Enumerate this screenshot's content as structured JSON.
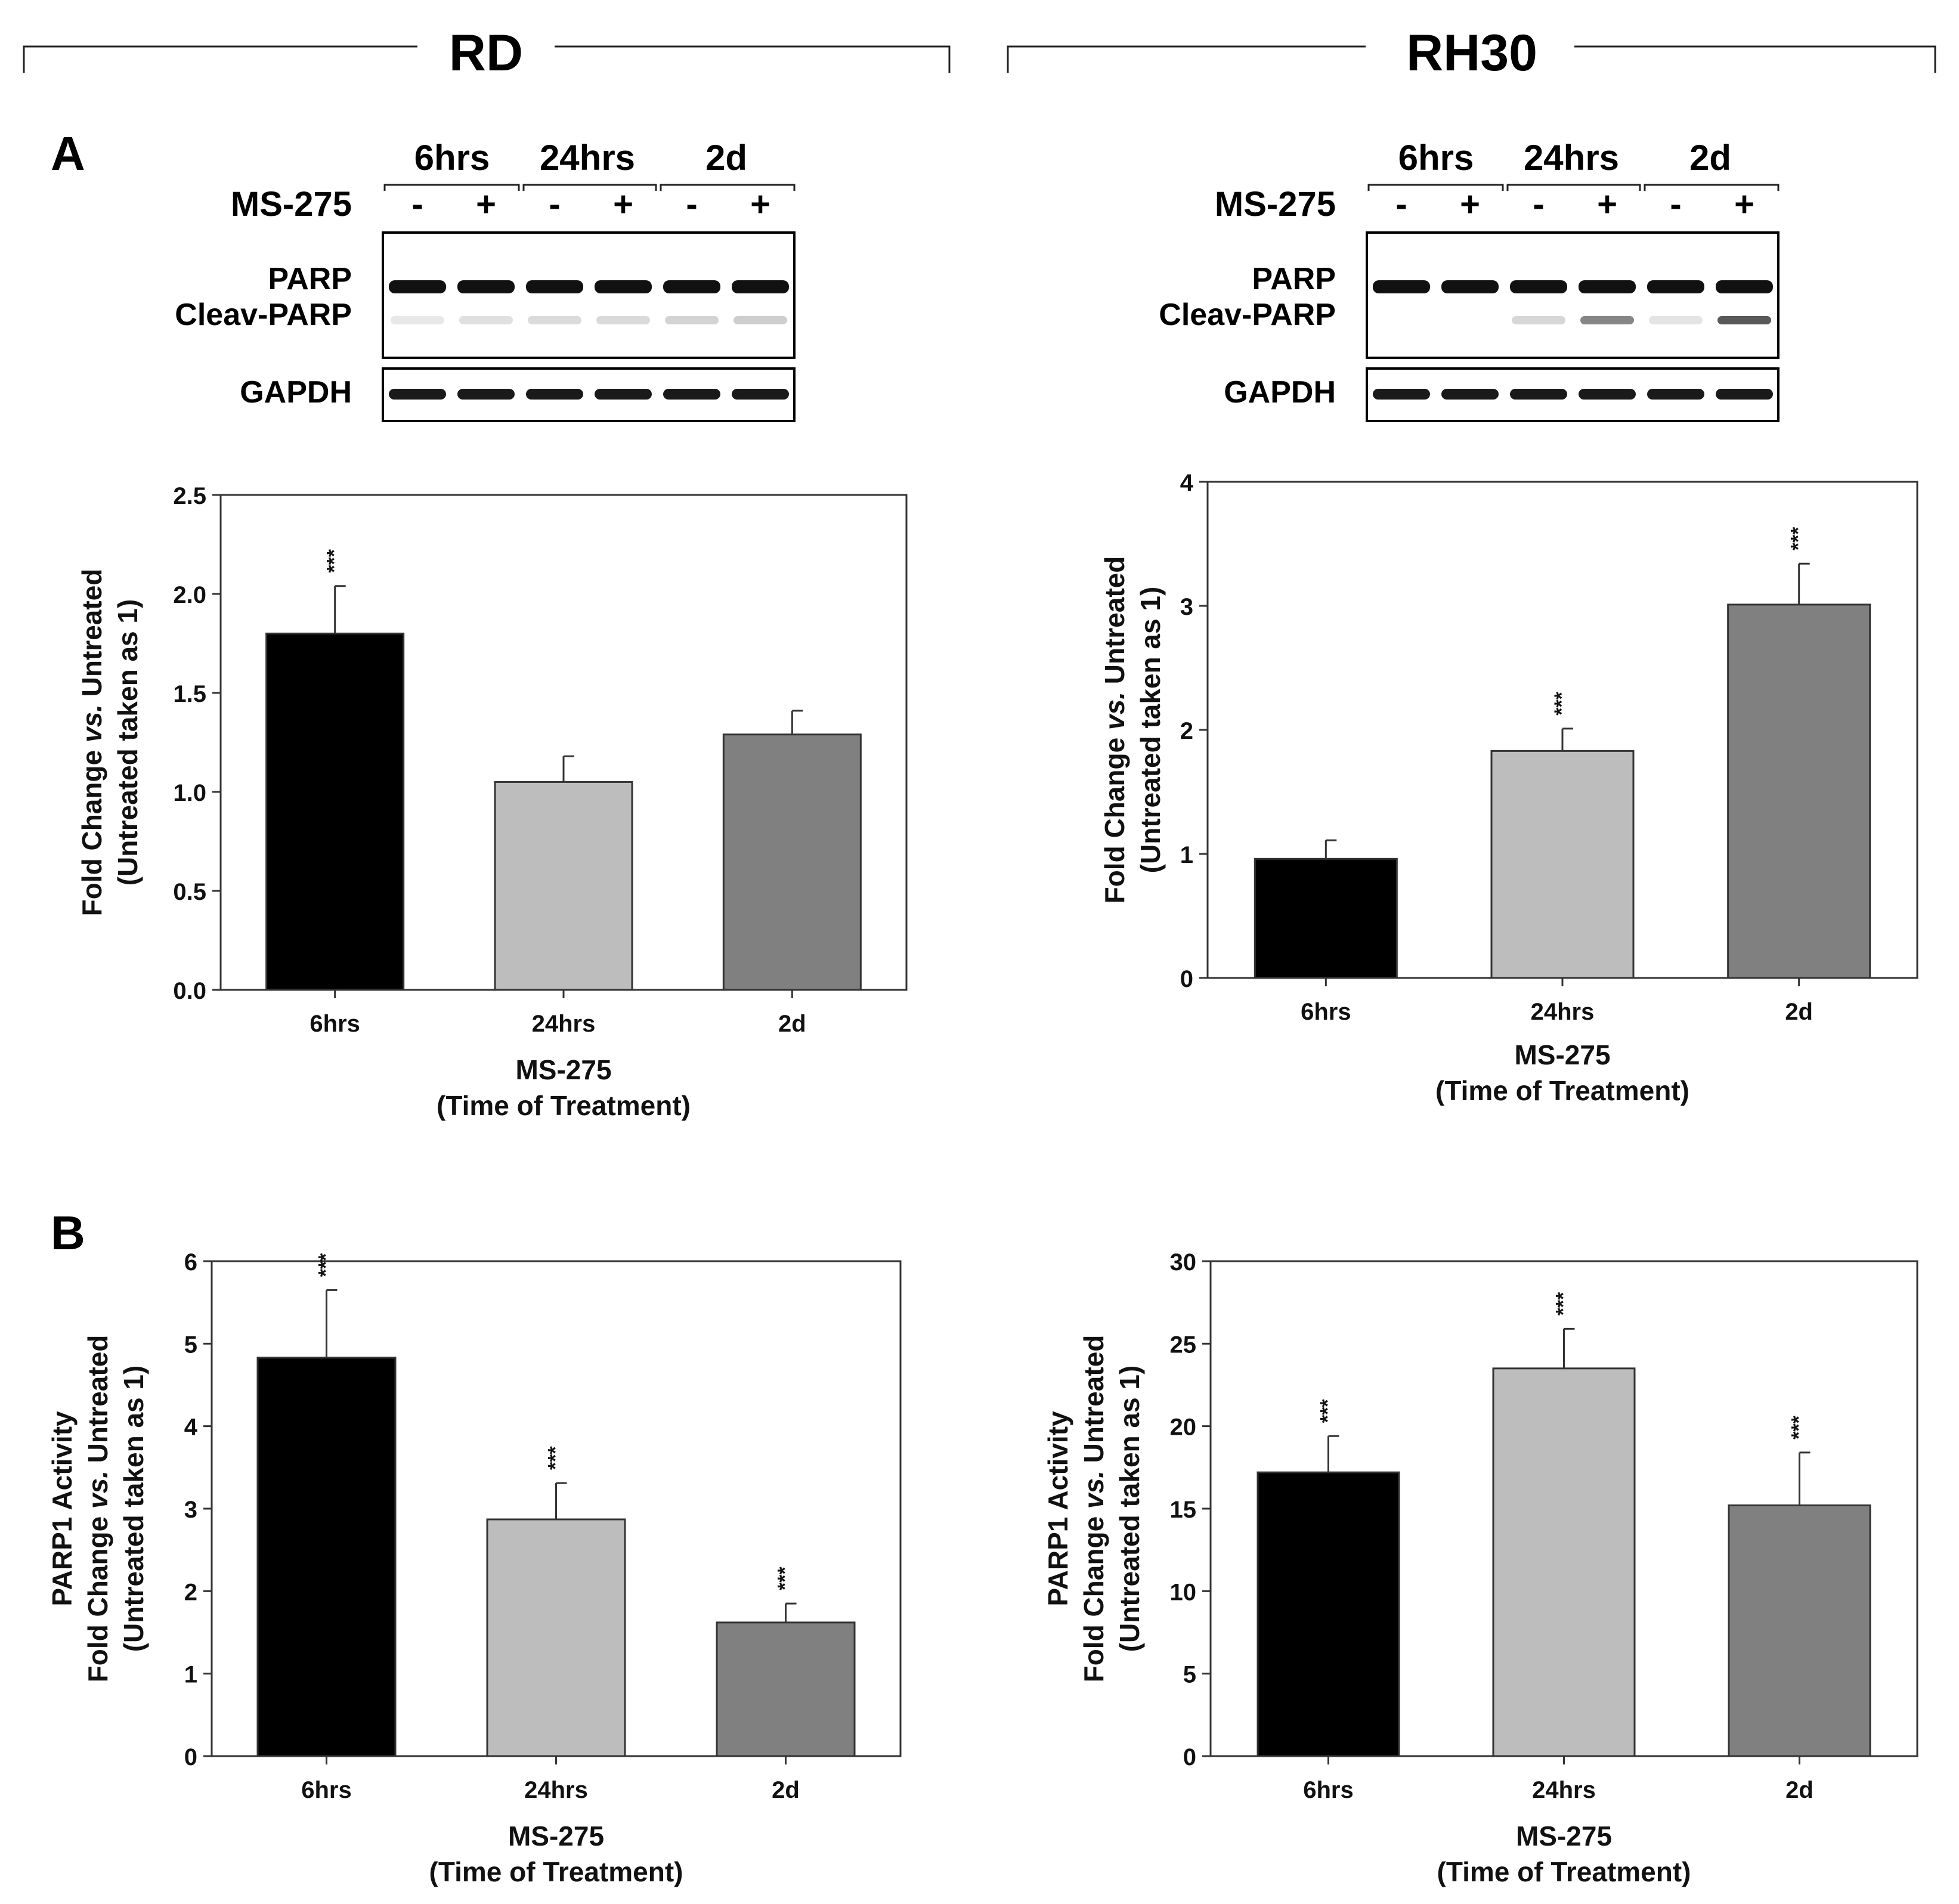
{
  "cell_lines": [
    {
      "name": "RD",
      "blot": {
        "timepoints": [
          "6hrs",
          "24hrs",
          "2d"
        ],
        "treatment_label": "MS-275",
        "lane_signs": [
          "-",
          "+",
          "-",
          "+",
          "-",
          "+"
        ],
        "bands": [
          "PARP",
          "Cleav-PARP"
        ],
        "loading_control": "GAPDH"
      }
    },
    {
      "name": "RH30",
      "blot": {
        "timepoints": [
          "6hrs",
          "24hrs",
          "2d"
        ],
        "treatment_label": "MS-275",
        "lane_signs": [
          "-",
          "+",
          "-",
          "+",
          "-",
          "+"
        ],
        "bands": [
          "PARP",
          "Cleav-PARP"
        ],
        "loading_control": "GAPDH"
      }
    }
  ],
  "panels": [
    {
      "label": "A"
    },
    {
      "label": "B"
    }
  ],
  "chart_data": [
    {
      "id": "RD-A",
      "type": "bar",
      "panel": "A",
      "cell_line": "RD",
      "categories": [
        "6hrs",
        "24hrs",
        "2d"
      ],
      "values": [
        1.8,
        1.05,
        1.29
      ],
      "errors": [
        0.24,
        0.13,
        0.12
      ],
      "significance": [
        "***",
        "",
        ""
      ],
      "colors": [
        "#000000",
        "#bdbdbd",
        "#808080"
      ],
      "ylabel_lines": [
        "Fold Change vs. Untreated",
        "(Untreated taken as 1)"
      ],
      "xlabel_lines": [
        "MS-275",
        "(Time of Treatment)"
      ],
      "ylim": [
        0,
        2.5
      ],
      "yticks": [
        0.0,
        0.5,
        1.0,
        1.5,
        2.0,
        2.5
      ],
      "ytick_labels": [
        "0.0",
        "0.5",
        "1.0",
        "1.5",
        "2.0",
        "2.5"
      ]
    },
    {
      "id": "RH30-A",
      "type": "bar",
      "panel": "A",
      "cell_line": "RH30",
      "categories": [
        "6hrs",
        "24hrs",
        "2d"
      ],
      "values": [
        0.96,
        1.83,
        3.01
      ],
      "errors": [
        0.15,
        0.18,
        0.33
      ],
      "significance": [
        "",
        "***",
        "***"
      ],
      "colors": [
        "#000000",
        "#bdbdbd",
        "#808080"
      ],
      "ylabel_lines": [
        "Fold Change vs. Untreated",
        "(Untreated taken as 1)"
      ],
      "xlabel_lines": [
        "MS-275",
        "(Time of Treatment)"
      ],
      "ylim": [
        0,
        4
      ],
      "yticks": [
        0,
        1,
        2,
        3,
        4
      ],
      "ytick_labels": [
        "0",
        "1",
        "2",
        "3",
        "4"
      ]
    },
    {
      "id": "RD-B",
      "type": "bar",
      "panel": "B",
      "cell_line": "RD",
      "categories": [
        "6hrs",
        "24hrs",
        "2d"
      ],
      "values": [
        4.83,
        2.87,
        1.62
      ],
      "errors": [
        0.82,
        0.44,
        0.23
      ],
      "significance": [
        "***",
        "***",
        "***"
      ],
      "colors": [
        "#000000",
        "#bdbdbd",
        "#808080"
      ],
      "ylabel_lines": [
        "PARP1 Activity",
        "Fold Change vs. Untreated",
        "(Untreated taken as 1)"
      ],
      "xlabel_lines": [
        "MS-275",
        "(Time of Treatment)"
      ],
      "ylim": [
        0,
        6
      ],
      "yticks": [
        0,
        1,
        2,
        3,
        4,
        5,
        6
      ],
      "ytick_labels": [
        "0",
        "1",
        "2",
        "3",
        "4",
        "5",
        "6"
      ]
    },
    {
      "id": "RH30-B",
      "type": "bar",
      "panel": "B",
      "cell_line": "RH30",
      "categories": [
        "6hrs",
        "24hrs",
        "2d"
      ],
      "values": [
        17.2,
        23.5,
        15.2
      ],
      "errors": [
        2.2,
        2.4,
        3.2
      ],
      "significance": [
        "***",
        "***",
        "***"
      ],
      "colors": [
        "#000000",
        "#bdbdbd",
        "#808080"
      ],
      "ylabel_lines": [
        "PARP1 Activity",
        "Fold Change vs. Untreated",
        "(Untreated taken as 1)"
      ],
      "xlabel_lines": [
        "MS-275",
        "(Time of Treatment)"
      ],
      "ylim": [
        0,
        30
      ],
      "yticks": [
        0,
        5,
        10,
        15,
        20,
        25,
        30
      ],
      "ytick_labels": [
        "0",
        "5",
        "10",
        "15",
        "20",
        "25",
        "30"
      ]
    }
  ]
}
